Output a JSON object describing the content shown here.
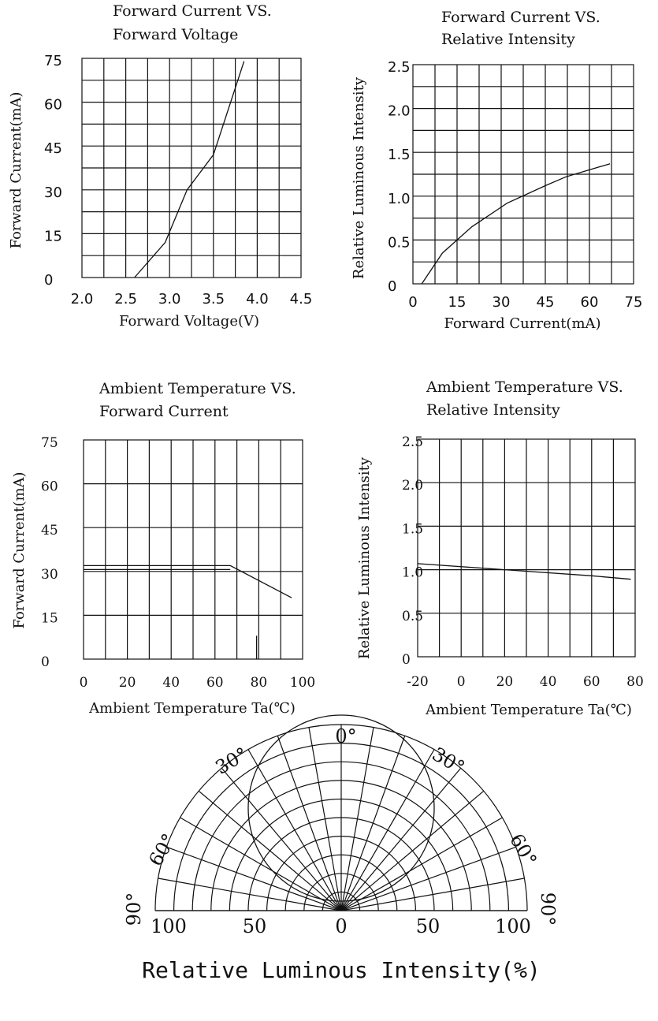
{
  "chart_data": [
    {
      "type": "line",
      "title_lines": [
        "Forward Current VS.",
        "Forward Voltage"
      ],
      "xlabel": "Forward Voltage(V)",
      "ylabel": "Forward Current(mA)",
      "xlim": [
        2.0,
        4.5
      ],
      "ylim": [
        0,
        75
      ],
      "xticks": [
        "2.0",
        "2.5",
        "3.0",
        "3.5",
        "4.0",
        "4.5"
      ],
      "yticks": [
        "0",
        "15",
        "30",
        "45",
        "60",
        "75"
      ],
      "x": [
        2.6,
        2.95,
        3.2,
        3.5,
        3.85
      ],
      "y": [
        0,
        12,
        30,
        42,
        74
      ]
    },
    {
      "type": "line",
      "title_lines": [
        "Forward Current VS.",
        "Relative Intensity"
      ],
      "xlabel": "Forward Current(mA)",
      "ylabel": "Relative Luminous Intensity",
      "xlim": [
        0,
        75
      ],
      "ylim": [
        0,
        2.5
      ],
      "xticks": [
        "0",
        "15",
        "30",
        "45",
        "60",
        "75"
      ],
      "yticks": [
        "0",
        "0.5",
        "1.0",
        "1.5",
        "2.0",
        "2.5"
      ],
      "x": [
        3,
        10,
        20,
        32,
        45,
        52,
        60,
        67
      ],
      "y": [
        0,
        0.35,
        0.65,
        0.92,
        1.12,
        1.22,
        1.3,
        1.37
      ]
    },
    {
      "type": "line",
      "title_lines": [
        "Ambient Temperature VS.",
        "Forward Current"
      ],
      "xlabel": "Ambient Temperature Ta(℃)",
      "ylabel": "Forward Current(mA)",
      "xlim": [
        0,
        100
      ],
      "ylim": [
        0,
        75
      ],
      "xticks": [
        "0",
        "20",
        "40",
        "60",
        "80",
        "100"
      ],
      "yticks": [
        "0",
        "15",
        "30",
        "45",
        "60",
        "75"
      ],
      "x": [
        0,
        67,
        95
      ],
      "y": [
        32,
        32,
        21
      ]
    },
    {
      "type": "line",
      "title_lines": [
        "Ambient Temperature VS.",
        "Relative Intensity"
      ],
      "xlabel": "Ambient Temperature Ta(℃)",
      "ylabel": "Relative Luminous Intensity",
      "xlim": [
        -20,
        80
      ],
      "ylim": [
        0,
        2.5
      ],
      "xticks": [
        "-20",
        "0",
        "20",
        "40",
        "60",
        "80"
      ],
      "yticks": [
        "0",
        "0.5",
        "1.0",
        "1.5",
        "2.0",
        "2.5"
      ],
      "x": [
        -20,
        20,
        60,
        78
      ],
      "y": [
        1.07,
        1.0,
        0.93,
        0.89
      ]
    },
    {
      "type": "polar",
      "xlabel": "Relative Luminous Intensity(%)",
      "radial_ticks_left": [
        "100",
        "50",
        "0"
      ],
      "radial_ticks_right": [
        "50",
        "100"
      ],
      "angle_labels": [
        "0°",
        "30°",
        "30°",
        "60°",
        "60°",
        "90°",
        "90°"
      ]
    }
  ]
}
